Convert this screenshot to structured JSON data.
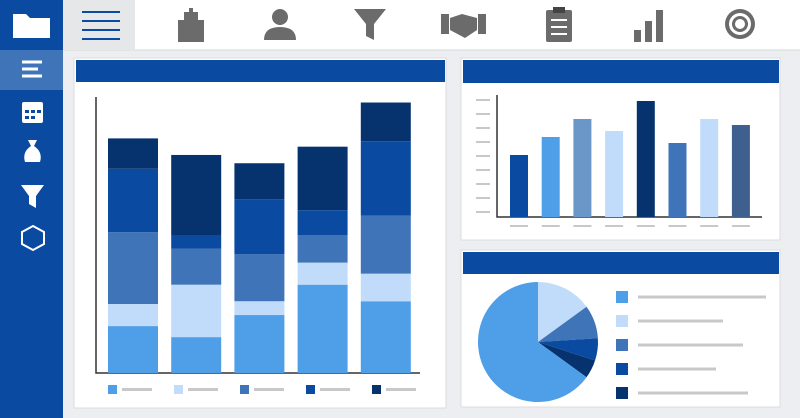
{
  "chart_data": [
    {
      "type": "stacked-bar",
      "ylim": [
        0,
        100
      ],
      "series": [
        {
          "color": "#4f9ee8",
          "values": [
            17,
            13,
            21,
            32,
            26
          ]
        },
        {
          "color": "#c0dcfa",
          "values": [
            8,
            19,
            5,
            8,
            10
          ]
        },
        {
          "color": "#3f74b8",
          "values": [
            26,
            13,
            17,
            10,
            21
          ]
        },
        {
          "color": "#0a4aa0",
          "values": [
            23,
            5,
            20,
            9,
            27
          ]
        },
        {
          "color": "#06336e",
          "values": [
            11,
            29,
            13,
            23,
            14
          ]
        }
      ]
    },
    {
      "type": "bar",
      "ylim": [
        0,
        120
      ],
      "values": [
        62,
        80,
        98,
        86,
        116,
        74,
        98,
        92
      ],
      "colors": [
        "#0a4aa0",
        "#4f9ee8",
        "#6a96c8",
        "#c0dcfa",
        "#06336e",
        "#3f74b8",
        "#c0dcfa",
        "#3f5f8f"
      ]
    },
    {
      "type": "pie",
      "values": [
        15,
        9,
        6,
        5,
        65
      ],
      "colors": [
        "#c0dcfa",
        "#3f74b8",
        "#0a4aa0",
        "#06336e",
        "#4f9ee8"
      ]
    }
  ]
}
